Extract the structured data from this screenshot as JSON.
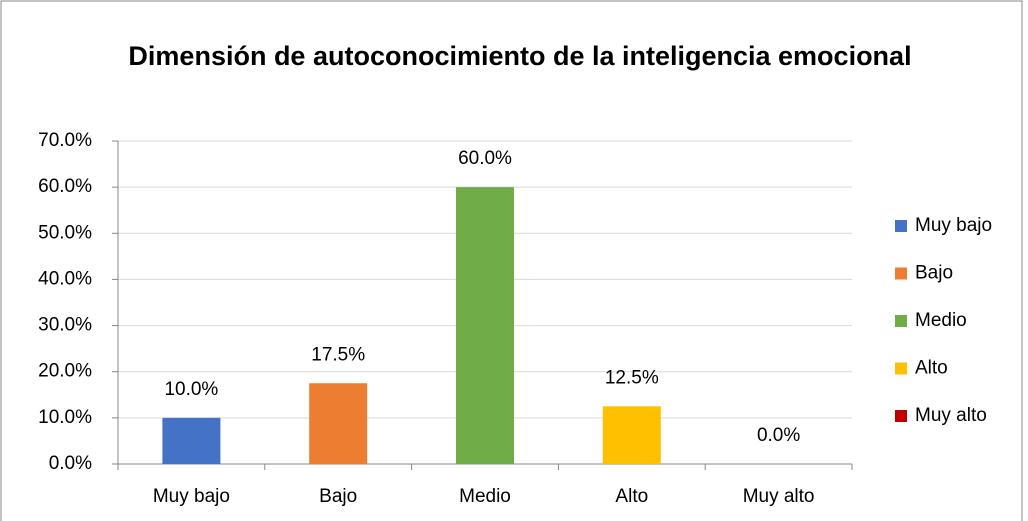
{
  "chart_data": {
    "type": "bar",
    "title": "Dimensión de autoconocimiento de la inteligencia emocional",
    "categories": [
      "Muy bajo",
      "Bajo",
      "Medio",
      "Alto",
      "Muy alto"
    ],
    "values": [
      10,
      17.5,
      60,
      12.5,
      0
    ],
    "value_labels": [
      "10.0%",
      "17.5%",
      "60.0%",
      "12.5%",
      "0.0%"
    ],
    "colors": [
      "#4472c4",
      "#ed7d31",
      "#70ad47",
      "#ffc000",
      "#c00000"
    ],
    "ylim": [
      0,
      70
    ],
    "yticks": [
      {
        "value": 0,
        "label": "0.0%"
      },
      {
        "value": 10,
        "label": "10.0%"
      },
      {
        "value": 20,
        "label": "20.0%"
      },
      {
        "value": 30,
        "label": "30.0%"
      },
      {
        "value": 40,
        "label": "40.0%"
      },
      {
        "value": 50,
        "label": "50.0%"
      },
      {
        "value": 60,
        "label": "60.0%"
      },
      {
        "value": 70,
        "label": "70.0%"
      }
    ],
    "grid": true,
    "legend": "right"
  }
}
